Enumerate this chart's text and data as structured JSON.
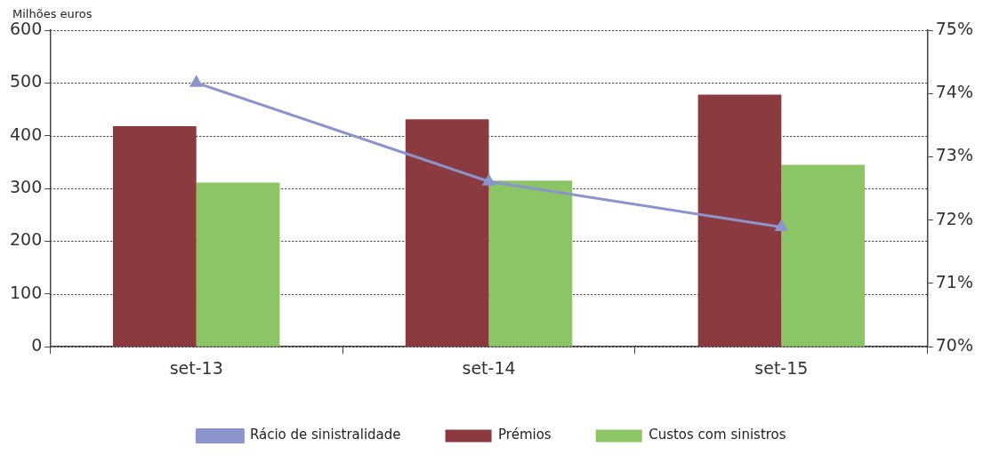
{
  "chart_data": {
    "type": "bar",
    "ylabel": "Milhões euros",
    "categories": [
      "set-13",
      "set-14",
      "set-15"
    ],
    "series": [
      {
        "name": "Prémios",
        "color": "#8b3a40",
        "values": [
          418,
          431,
          478
        ]
      },
      {
        "name": "Custos com sinistros",
        "color": "#8bc565",
        "values": [
          311,
          315,
          345
        ]
      },
      {
        "name": "Rácio de sinistralidade",
        "type": "line",
        "axis": "y2",
        "color": "#8c94cc",
        "values": [
          74.17,
          72.61,
          71.89
        ]
      }
    ],
    "ylim": [
      0,
      600
    ],
    "yticks": [
      0,
      100,
      200,
      300,
      400,
      500,
      600
    ],
    "y2lim": [
      70,
      75
    ],
    "y2ticks": [
      {
        "value": 70,
        "label": "70%"
      },
      {
        "value": 71,
        "label": "71%"
      },
      {
        "value": 72,
        "label": "72%"
      },
      {
        "value": 73,
        "label": "73%"
      },
      {
        "value": 74,
        "label": "74%"
      },
      {
        "value": 75,
        "label": "75%"
      }
    ],
    "grid": "y",
    "legend": "bottom",
    "marker": "triangle",
    "line_style": "solid"
  }
}
